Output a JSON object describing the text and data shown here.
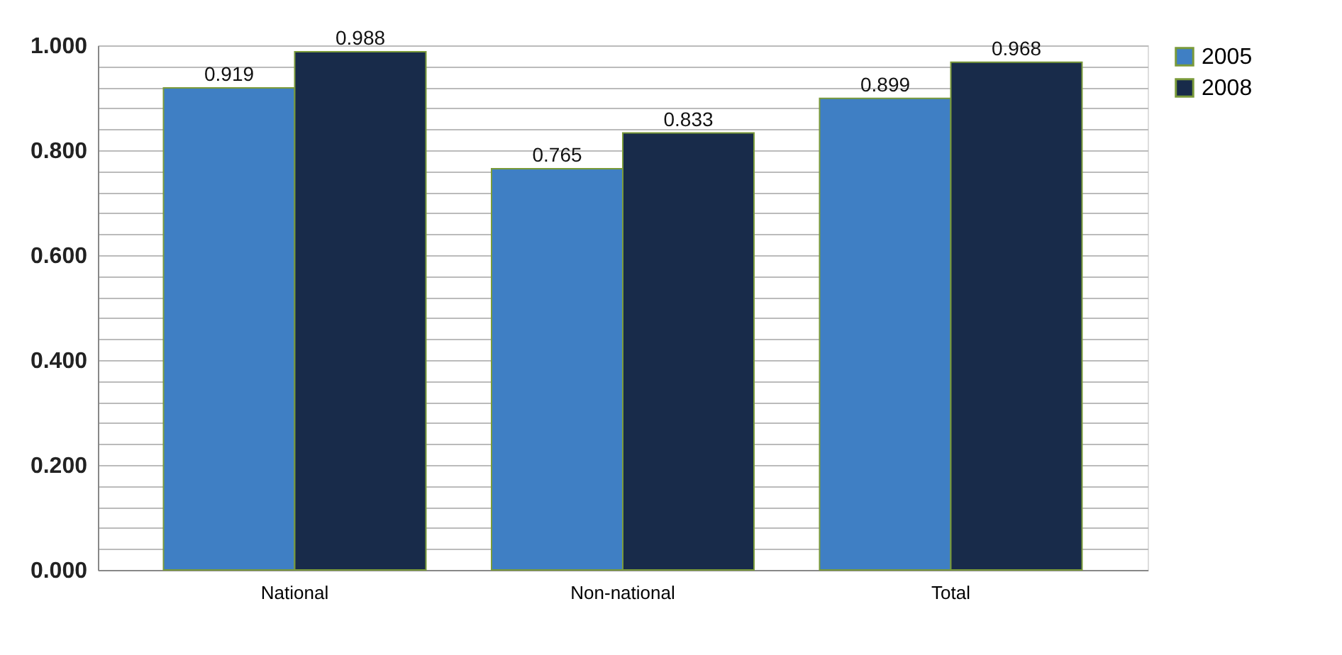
{
  "chart_data": {
    "type": "bar",
    "categories": [
      "National",
      "Non-national",
      "Total"
    ],
    "series": [
      {
        "name": "2005",
        "color": "#3f7fc4",
        "values": [
          0.919,
          0.765,
          0.899
        ]
      },
      {
        "name": "2008",
        "color": "#182b4a",
        "values": [
          0.988,
          0.833,
          0.968
        ]
      }
    ],
    "ylim": [
      0,
      1
    ],
    "yticks": [
      {
        "value": 0,
        "label": "0.000"
      },
      {
        "value": 0.04,
        "label": null
      },
      {
        "value": 0.08,
        "label": null
      },
      {
        "value": 0.12,
        "label": null
      },
      {
        "value": 0.16,
        "label": null
      },
      {
        "value": 0.2,
        "label": "0.200"
      },
      {
        "value": 0.24,
        "label": null
      },
      {
        "value": 0.28,
        "label": null
      },
      {
        "value": 0.32,
        "label": null
      },
      {
        "value": 0.36,
        "label": null
      },
      {
        "value": 0.4,
        "label": "0.400"
      },
      {
        "value": 0.44,
        "label": null
      },
      {
        "value": 0.48,
        "label": null
      },
      {
        "value": 0.52,
        "label": null
      },
      {
        "value": 0.56,
        "label": null
      },
      {
        "value": 0.6,
        "label": "0.600"
      },
      {
        "value": 0.64,
        "label": null
      },
      {
        "value": 0.68,
        "label": null
      },
      {
        "value": 0.72,
        "label": null
      },
      {
        "value": 0.76,
        "label": null
      },
      {
        "value": 0.8,
        "label": "0.800"
      },
      {
        "value": 0.84,
        "label": null
      },
      {
        "value": 0.88,
        "label": null
      },
      {
        "value": 0.92,
        "label": null
      },
      {
        "value": 0.96,
        "label": null
      },
      {
        "value": 1,
        "label": "1.000"
      }
    ],
    "grid": "y",
    "legend": "right",
    "data_labels": true
  }
}
